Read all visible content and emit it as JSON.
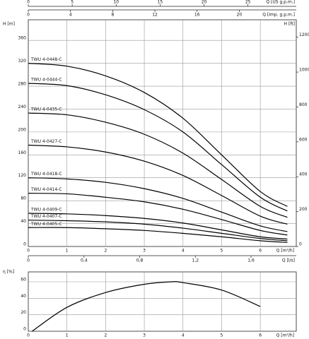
{
  "chart_data": [
    {
      "type": "line",
      "x_label": "Q [m³/h]",
      "y_label": "H [m]",
      "y2_label": "H [ft]",
      "xlim": [
        0,
        6.93
      ],
      "xticks": [
        0,
        1,
        2,
        3,
        4,
        5,
        6
      ],
      "ylim": [
        0,
        396
      ],
      "yticks": [
        0,
        40,
        80,
        120,
        160,
        200,
        240,
        280,
        320,
        360
      ],
      "y2lim": [
        0,
        1300
      ],
      "y2ticks": [
        0,
        200,
        400,
        600,
        800,
        1000,
        1200
      ],
      "grid": true,
      "extra_x_axes": [
        {
          "label": "Q [US g.p.m.]",
          "xlim": [
            0,
            30.5
          ],
          "xticks": [
            0,
            5,
            10,
            15,
            20,
            25
          ]
        },
        {
          "label": "Q [Imp. g.p.m.]",
          "xlim": [
            0,
            25.4
          ],
          "xticks": [
            0,
            4,
            8,
            12,
            16,
            20
          ]
        },
        {
          "label": "Q [l/s]",
          "xlim": [
            0,
            1.925
          ],
          "xticks": [
            0,
            {
              "value": 0.4,
              "label": "0,4"
            },
            {
              "value": 0.8,
              "label": "0,8"
            },
            {
              "value": 1.2,
              "label": "1,2"
            },
            {
              "value": 1.6,
              "label": "1,6"
            }
          ]
        }
      ],
      "x": [
        0,
        1,
        2,
        3,
        4,
        5,
        6,
        6.7
      ],
      "series": [
        {
          "name": "TWU 4-0448-C",
          "color": "#000000",
          "values": [
            320,
            315,
            298,
            269,
            224,
            160,
            96,
            70
          ]
        },
        {
          "name": "TWU 4-0444-C",
          "color": "#000000",
          "values": [
            285,
            281,
            265,
            239,
            200,
            143,
            86,
            62
          ]
        },
        {
          "name": "TWU 4-0435-C",
          "color": "#000000",
          "values": [
            233,
            230,
            217,
            196,
            163,
            117,
            70,
            51
          ]
        },
        {
          "name": "TWU 4-0427-C",
          "color": "#000000",
          "values": [
            177,
            174,
            165,
            149,
            124,
            89,
            53,
            39
          ]
        },
        {
          "name": "TWU 4-0418-C",
          "color": "#000000",
          "values": [
            120,
            118,
            112,
            101,
            84,
            60,
            36,
            26
          ]
        },
        {
          "name": "TWU 4-0414-C",
          "color": "#000000",
          "values": [
            93,
            92,
            86,
            78,
            65,
            47,
            28,
            20
          ]
        },
        {
          "name": "TWU 4-0409-C",
          "color": "#000000",
          "values": [
            58,
            57,
            54,
            49,
            41,
            29,
            17,
            13
          ]
        },
        {
          "name": "TWU 4-0407-C",
          "color": "#000000",
          "values": [
            46,
            45,
            43,
            39,
            32,
            23,
            14,
            10
          ]
        },
        {
          "name": "TWU 4-0405-C",
          "color": "#000000",
          "values": [
            33,
            33,
            31,
            28,
            23,
            17,
            10,
            7
          ]
        }
      ]
    },
    {
      "type": "line",
      "x_label": "Q [m³/h]",
      "y_label": "η [%]",
      "xlim": [
        0,
        6.93
      ],
      "xticks": [
        0,
        1,
        2,
        3,
        4,
        5,
        6
      ],
      "ylim": [
        0,
        72
      ],
      "yticks": [
        0,
        20,
        40,
        60
      ],
      "grid": true,
      "x": [
        0.1,
        1,
        2,
        3,
        3.7,
        4,
        5,
        6
      ],
      "series": [
        {
          "color": "#000000",
          "values": [
            0,
            29,
            47,
            57,
            60,
            59,
            50,
            30
          ]
        }
      ]
    }
  ]
}
